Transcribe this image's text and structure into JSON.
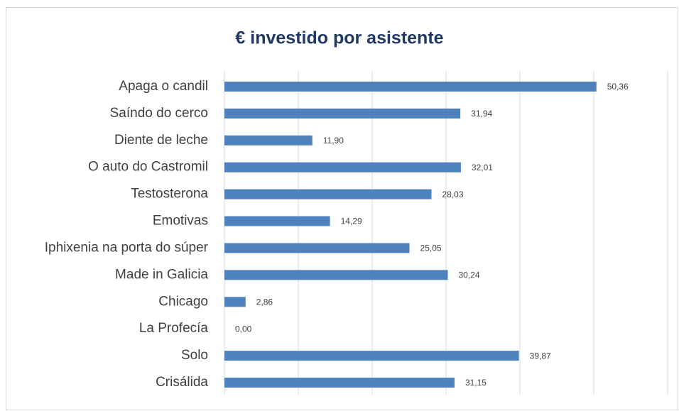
{
  "chart_data": {
    "type": "bar",
    "orientation": "horizontal",
    "title": "€ investido por asistente",
    "categories": [
      "Apaga o candil",
      "Saíndo do cerco",
      "Diente de leche",
      "O auto do Castromil",
      "Testosterona",
      "Emotivas",
      "Iphixenia na porta do súper",
      "Made in Galicia",
      "Chicago",
      "La Profecía",
      "Solo",
      "Crisálida"
    ],
    "values": [
      50.36,
      31.94,
      11.9,
      32.01,
      28.03,
      14.29,
      25.05,
      30.24,
      2.86,
      0.0,
      39.87,
      31.15
    ],
    "value_labels": [
      "50,36",
      "31,94",
      "11,90",
      "32,01",
      "28,03",
      "14,29",
      "25,05",
      "30,24",
      "2,86",
      "0,00",
      "39,87",
      "31,15"
    ],
    "color": "#4f81bd",
    "xlim": [
      0,
      60
    ],
    "xticks": [
      0,
      10,
      20,
      30,
      40,
      50,
      60
    ],
    "grid": true
  }
}
